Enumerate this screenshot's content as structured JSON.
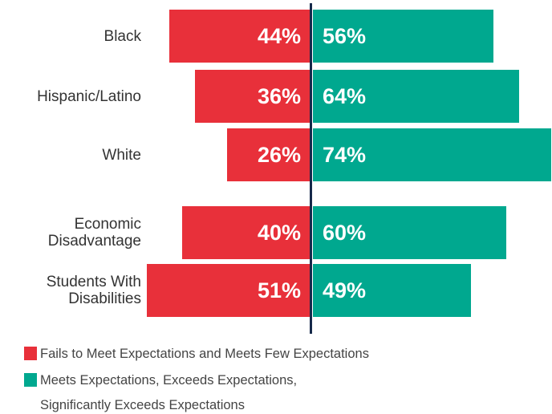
{
  "chart_data": {
    "type": "diverging-bar",
    "categories": [
      "Black",
      "Hispanic/Latino",
      "White",
      "Economic\nDisadvantage",
      "Students With\nDisabilities"
    ],
    "series": [
      {
        "name": "Fails to Meet Expectations and Meets Few Expectations",
        "color": "#e8303a",
        "values": [
          44,
          36,
          26,
          40,
          51
        ],
        "value_labels": [
          "44%",
          "36%",
          "26%",
          "40%",
          "51%"
        ]
      },
      {
        "name": "Meets Expectations, Exceeds Expectations, Significantly Exceeds Expectations",
        "color": "#00a88f",
        "values": [
          56,
          64,
          74,
          60,
          49
        ],
        "value_labels": [
          "56%",
          "64%",
          "74%",
          "60%",
          "49%"
        ]
      }
    ]
  }
}
